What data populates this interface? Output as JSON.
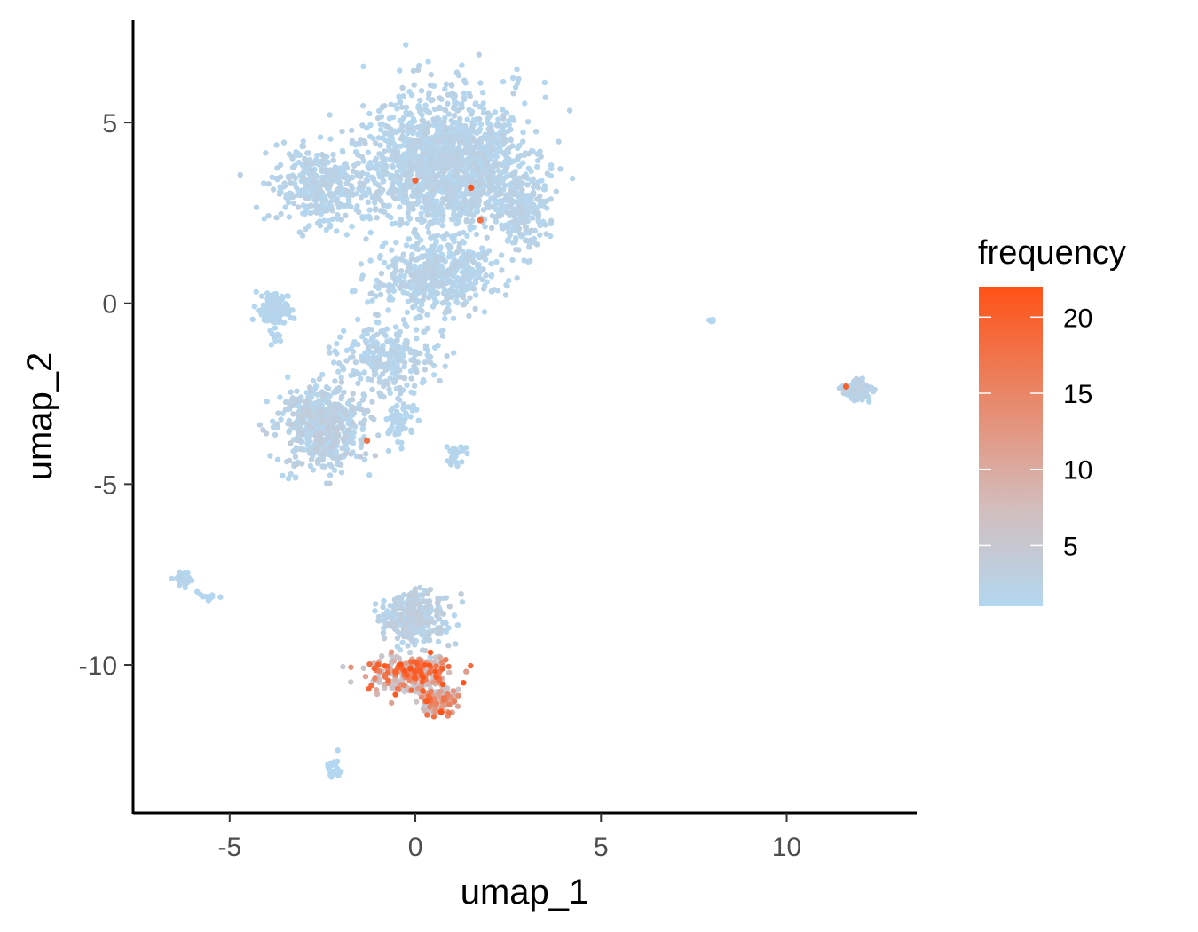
{
  "chart_data": {
    "type": "scatter",
    "title": "",
    "xlabel": "umap_1",
    "ylabel": "umap_2",
    "xlim": [
      -7.6,
      13.5
    ],
    "ylim": [
      -14.1,
      7.9
    ],
    "x_ticks": [
      {
        "value": -5,
        "label": "-5"
      },
      {
        "value": 0,
        "label": "0"
      },
      {
        "value": 5,
        "label": "5"
      },
      {
        "value": 10,
        "label": "10"
      }
    ],
    "y_ticks": [
      {
        "value": 5,
        "label": "5"
      },
      {
        "value": 0,
        "label": "0"
      },
      {
        "value": -5,
        "label": "-5"
      },
      {
        "value": -10,
        "label": "-10"
      }
    ],
    "grid": false,
    "color_scale": {
      "title": "frequency",
      "min": 1,
      "max": 22,
      "low_color": "#b3d7f0",
      "mid_color": "#d2bebe",
      "high_color": "#ff5216",
      "ticks": [
        {
          "value": 20,
          "label": "20"
        },
        {
          "value": 15,
          "label": "15"
        },
        {
          "value": 10,
          "label": "10"
        },
        {
          "value": 5,
          "label": "5"
        }
      ],
      "legend_position": "right"
    },
    "clusters": [
      {
        "name": "large-upper",
        "center": [
          0.8,
          3.8
        ],
        "spread": [
          1.8,
          1.6
        ],
        "count": 1600,
        "freq_range": [
          1,
          3
        ]
      },
      {
        "name": "upper-left-lobe",
        "center": [
          -2.6,
          3.3
        ],
        "spread": [
          1.1,
          0.9
        ],
        "count": 350,
        "freq_range": [
          1,
          3
        ]
      },
      {
        "name": "upper-right-lobe",
        "center": [
          2.9,
          2.5
        ],
        "spread": [
          0.6,
          0.9
        ],
        "count": 200,
        "freq_range": [
          1,
          3
        ]
      },
      {
        "name": "upper-lower-band",
        "center": [
          0.6,
          0.7
        ],
        "spread": [
          1.2,
          0.7
        ],
        "count": 450,
        "freq_range": [
          1,
          3
        ]
      },
      {
        "name": "left-small",
        "center": [
          -3.8,
          -0.2
        ],
        "spread": [
          0.35,
          0.5
        ],
        "count": 120,
        "freq_range": [
          1,
          2
        ]
      },
      {
        "name": "middle-scatter",
        "center": [
          -0.7,
          -1.5
        ],
        "spread": [
          1.1,
          0.9
        ],
        "count": 260,
        "freq_range": [
          1,
          3
        ]
      },
      {
        "name": "lower-left-blob",
        "center": [
          -2.5,
          -3.4
        ],
        "spread": [
          0.9,
          0.9
        ],
        "count": 550,
        "freq_range": [
          1,
          4
        ]
      },
      {
        "name": "small-right-of-blob",
        "center": [
          -0.4,
          -3.2
        ],
        "spread": [
          0.3,
          0.5
        ],
        "count": 60,
        "freq_range": [
          1,
          2
        ]
      },
      {
        "name": "tiny-right-scatter",
        "center": [
          1.1,
          -4.2
        ],
        "spread": [
          0.2,
          0.3
        ],
        "count": 25,
        "freq_range": [
          1,
          2
        ]
      },
      {
        "name": "far-right-cluster",
        "center": [
          11.9,
          -2.4
        ],
        "spread": [
          0.3,
          0.22
        ],
        "count": 160,
        "freq_range": [
          1,
          3
        ]
      },
      {
        "name": "isolated-point-group",
        "center": [
          8.0,
          -0.5
        ],
        "spread": [
          0.05,
          0.04
        ],
        "count": 6,
        "freq_range": [
          1,
          1
        ]
      },
      {
        "name": "far-left-small",
        "center": [
          -6.3,
          -7.6
        ],
        "spread": [
          0.2,
          0.15
        ],
        "count": 50,
        "freq_range": [
          1,
          2
        ]
      },
      {
        "name": "far-left-tail",
        "center": [
          -5.5,
          -8.1
        ],
        "spread": [
          0.25,
          0.1
        ],
        "count": 10,
        "freq_range": [
          1,
          1
        ]
      },
      {
        "name": "bottom-streak",
        "center": [
          -2.2,
          -12.8
        ],
        "spread": [
          0.15,
          0.3
        ],
        "count": 30,
        "freq_range": [
          1,
          1
        ]
      },
      {
        "name": "bottom-cluster-upper",
        "center": [
          0.0,
          -8.7
        ],
        "spread": [
          0.75,
          0.6
        ],
        "count": 320,
        "freq_range": [
          1,
          4
        ]
      },
      {
        "name": "bottom-cluster-high",
        "center": [
          -0.1,
          -10.3
        ],
        "spread": [
          0.9,
          0.45
        ],
        "count": 280,
        "freq_range": [
          4,
          22
        ]
      },
      {
        "name": "bottom-cluster-lower",
        "center": [
          0.6,
          -11.0
        ],
        "spread": [
          0.45,
          0.3
        ],
        "count": 120,
        "freq_range": [
          3,
          20
        ]
      }
    ],
    "highlight_points": [
      {
        "x": 0.0,
        "y": 3.4,
        "frequency": 20
      },
      {
        "x": 1.5,
        "y": 3.2,
        "frequency": 22
      },
      {
        "x": 1.75,
        "y": 2.3,
        "frequency": 18
      },
      {
        "x": -1.3,
        "y": -3.8,
        "frequency": 18
      },
      {
        "x": 11.6,
        "y": -2.3,
        "frequency": 20
      },
      {
        "x": -0.4,
        "y": -10.0,
        "frequency": 22
      },
      {
        "x": 0.3,
        "y": -11.0,
        "frequency": 21
      },
      {
        "x": 0.7,
        "y": -11.3,
        "frequency": 22
      },
      {
        "x": -1.0,
        "y": -10.0,
        "frequency": 20
      }
    ]
  }
}
